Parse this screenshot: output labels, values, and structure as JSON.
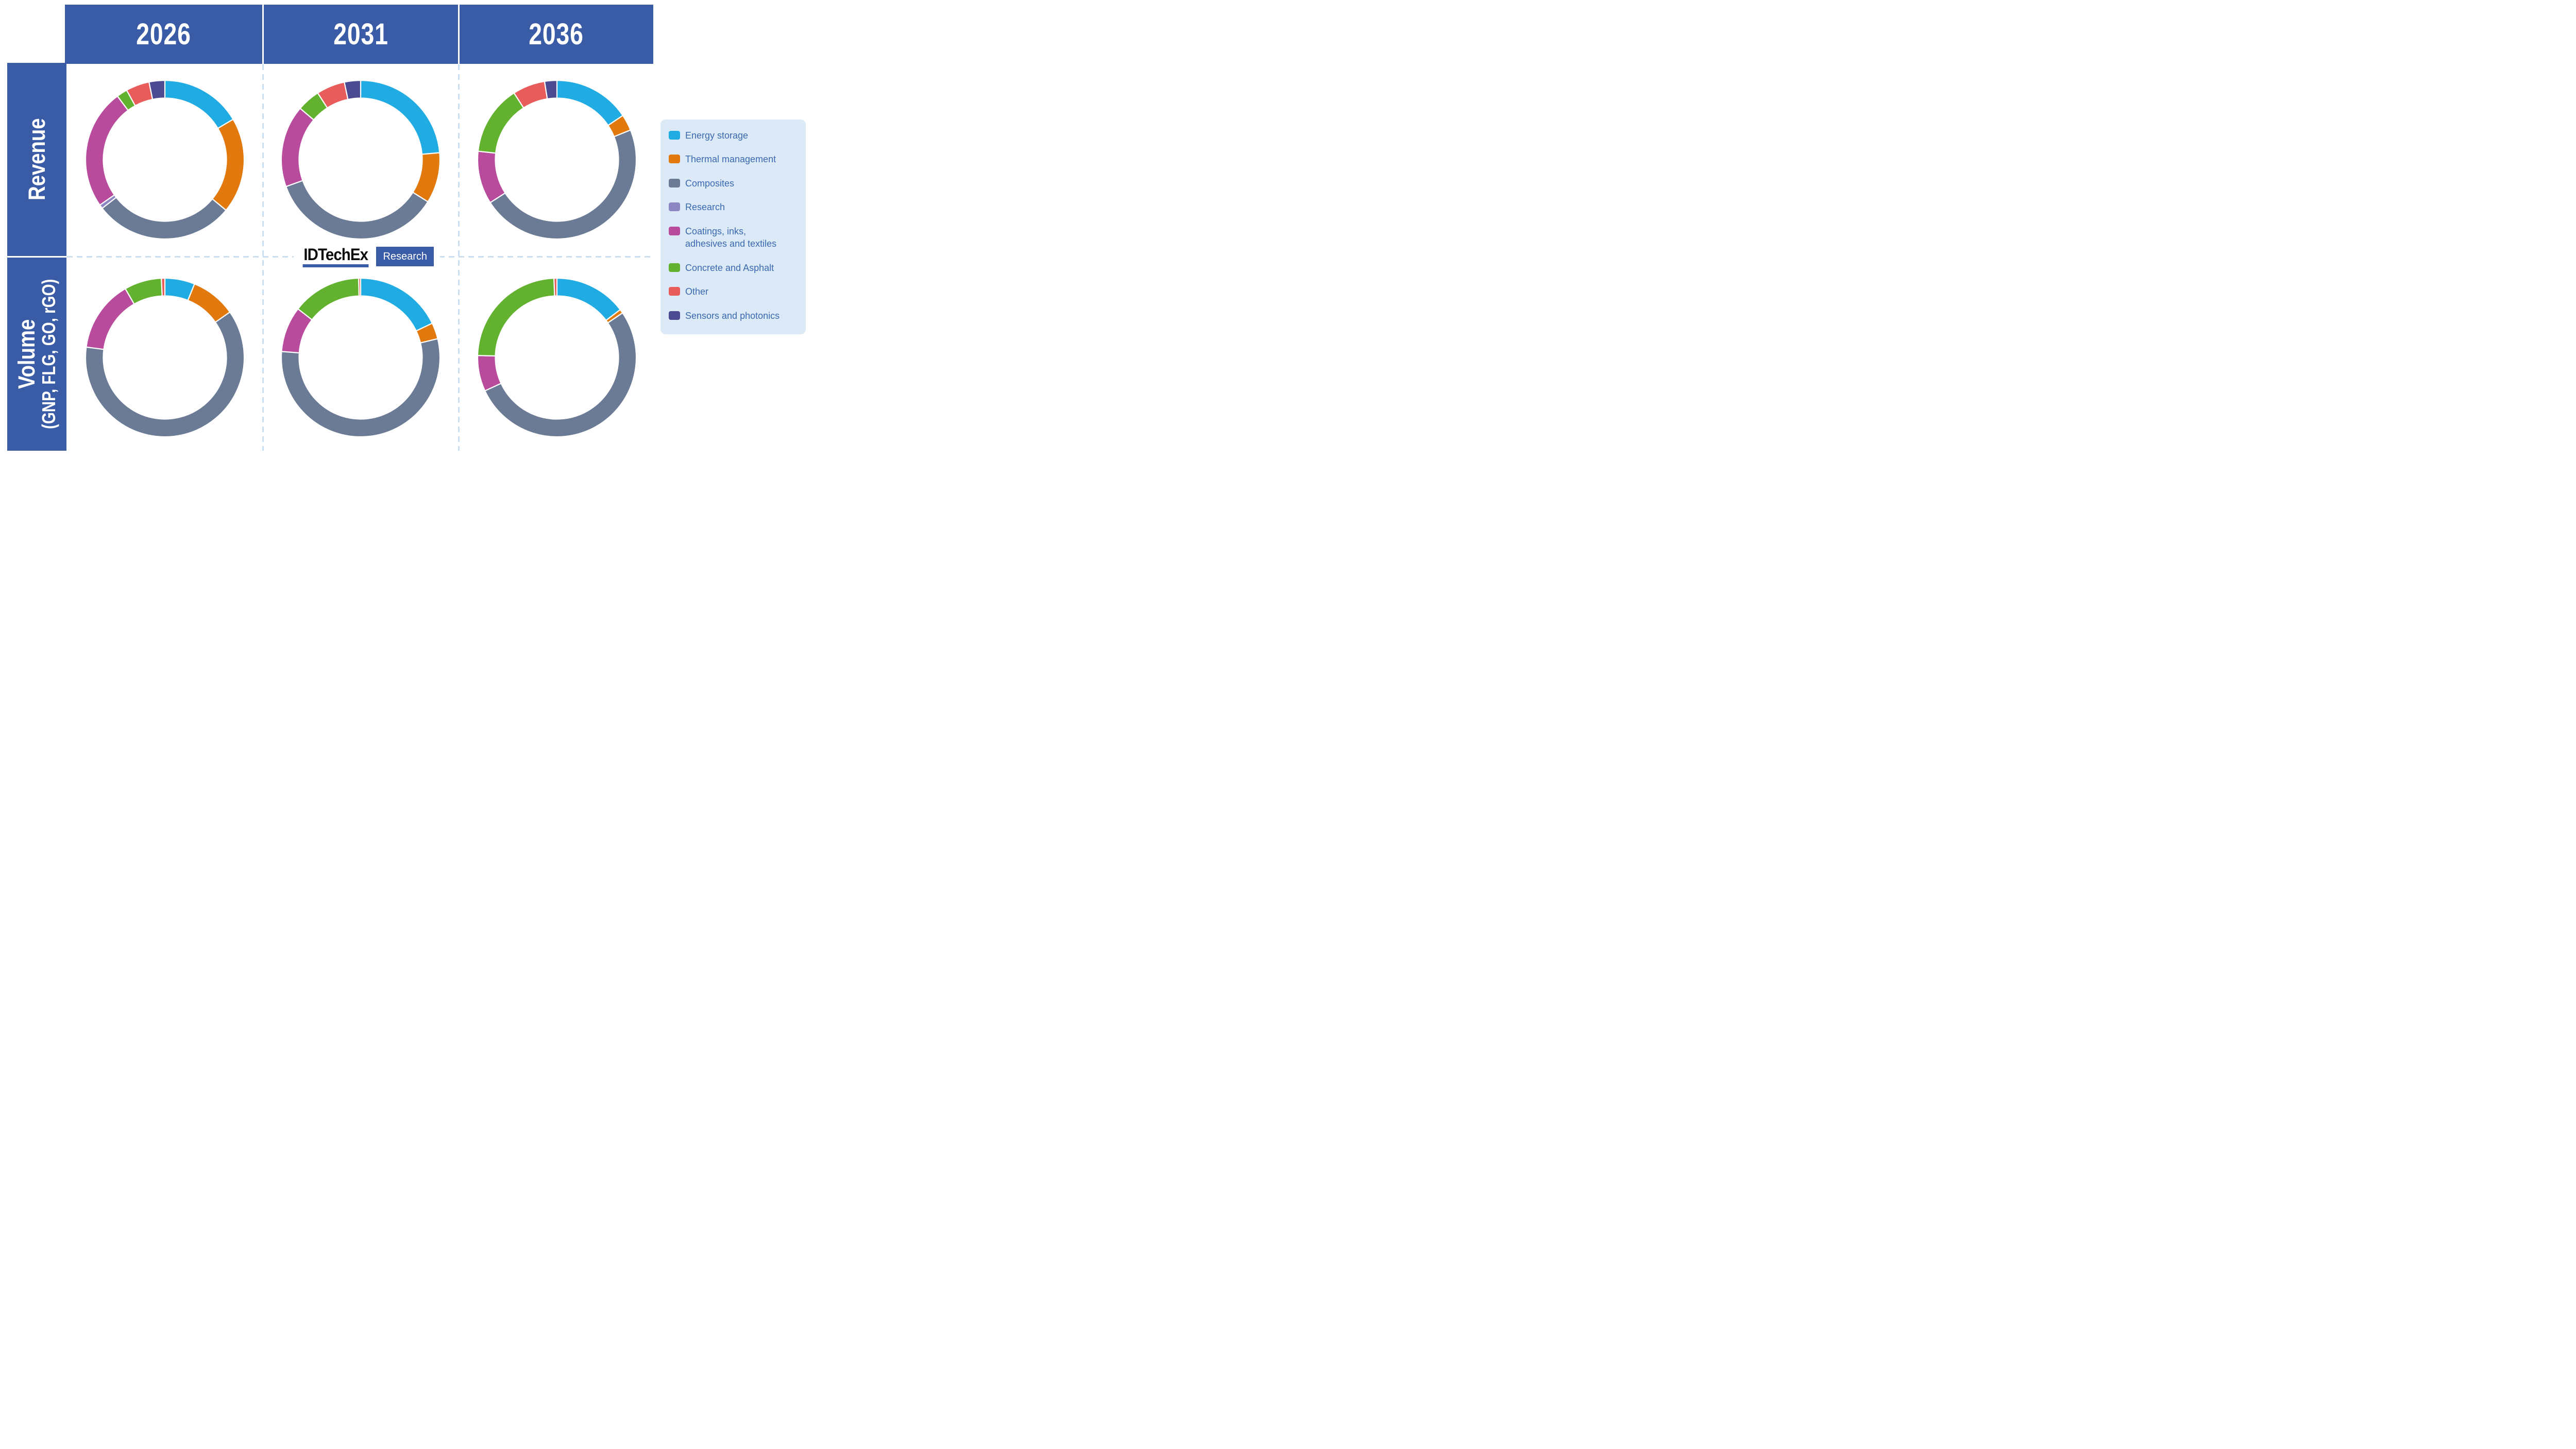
{
  "header": {
    "columns": [
      "2026",
      "2031",
      "2036"
    ]
  },
  "rows": [
    {
      "label": "Revenue",
      "sublabel": ""
    },
    {
      "label": "Volume",
      "sublabel": "(GNP, FLG, GO, rGO)"
    }
  ],
  "logo": {
    "brand": "IDTechEx",
    "badge": "Research"
  },
  "palette": {
    "header_blue": "#3a5ba6",
    "legend_background": "#dce9f6",
    "legend_text": "#3a68b1",
    "dashed_line": "#cbdff1"
  },
  "legend": {
    "items": [
      {
        "label": "Energy storage",
        "color": "#20ace2"
      },
      {
        "label": "Thermal management",
        "color": "#e1790e"
      },
      {
        "label": "Composites",
        "color": "#6b7b95"
      },
      {
        "label": "Research",
        "color": "#8c86c3"
      },
      {
        "label": "Coatings, inks,\nadhesives and textiles",
        "color": "#b94b9d"
      },
      {
        "label": "Concrete and Asphalt",
        "color": "#62b22f"
      },
      {
        "label": "Other",
        "color": "#e95c5c"
      },
      {
        "label": "Sensors and photonics",
        "color": "#4c4a90"
      }
    ]
  },
  "chart_data": {
    "type": "pie",
    "variant": "donut-grid",
    "title": "Graphene market forecast by application",
    "columns": [
      "2026",
      "2031",
      "2036"
    ],
    "rows": [
      "Revenue",
      "Volume (GNP, FLG, GO, rGO)"
    ],
    "categories": [
      "Energy storage",
      "Thermal management",
      "Composites",
      "Research",
      "Coatings, inks, adhesives and textiles",
      "Concrete and Asphalt",
      "Other",
      "Sensors and photonics"
    ],
    "colors": [
      "#20ace2",
      "#e1790e",
      "#6b7b95",
      "#8c86c3",
      "#b94b9d",
      "#62b22f",
      "#e95c5c",
      "#4c4a90"
    ],
    "units": "% share of ring (estimated from segment angles)",
    "start_angle": "12 o'clock, clockwise, legend order",
    "donuts": [
      {
        "row": "Revenue",
        "column": "2026",
        "values": [
          16.5,
          19.5,
          28.5,
          0.8,
          24.5,
          2.2,
          4.8,
          3.2
        ]
      },
      {
        "row": "Revenue",
        "column": "2031",
        "values": [
          23.6,
          10.3,
          35.6,
          0,
          16.7,
          4.7,
          5.8,
          3.3
        ]
      },
      {
        "row": "Revenue",
        "column": "2036",
        "values": [
          15.6,
          3.3,
          47.0,
          0,
          10.8,
          14.2,
          6.6,
          2.5
        ]
      },
      {
        "row": "Volume",
        "column": "2026",
        "values": [
          6.1,
          9.2,
          61.8,
          0,
          14.6,
          7.6,
          0.7,
          0
        ]
      },
      {
        "row": "Volume",
        "column": "2031",
        "values": [
          17.9,
          3.3,
          55.0,
          0,
          9.3,
          14.1,
          0.4,
          0
        ]
      },
      {
        "row": "Volume",
        "column": "2036",
        "values": [
          14.7,
          0.8,
          52.6,
          0,
          7.3,
          24.0,
          0.6,
          0
        ]
      }
    ]
  }
}
